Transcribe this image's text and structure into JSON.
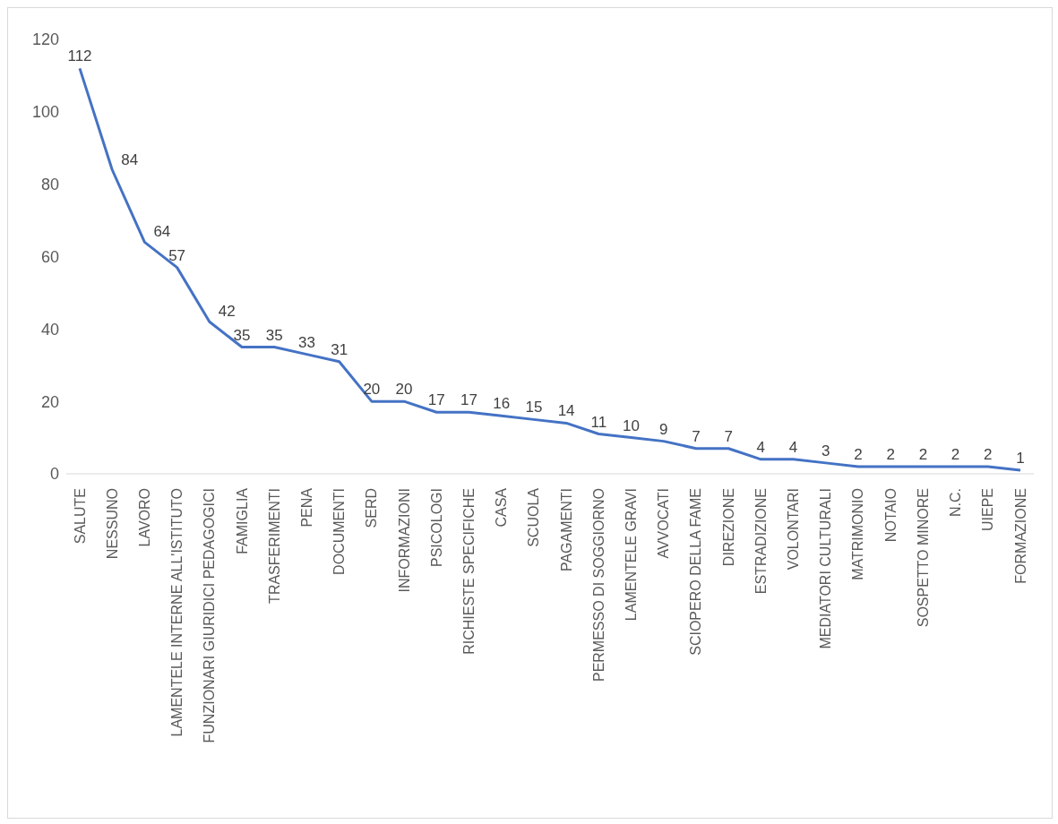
{
  "chart_data": {
    "type": "line",
    "categories": [
      "SALUTE",
      "NESSUNO",
      "LAVORO",
      "LAMENTELE INTERNE ALL'ISTITUTO",
      "FUNZIONARI GIURIDICI PEDAGOGICI",
      "FAMIGLIA",
      "TRASFERIMENTI",
      "PENA",
      "DOCUMENTI",
      "SERD",
      "INFORMAZIONI",
      "PSICOLOGI",
      "RICHIESTE SPECIFICHE",
      "CASA",
      "SCUOLA",
      "PAGAMENTI",
      "PERMESSO DI SOGGIORNO",
      "LAMENTELE GRAVI",
      "AVVOCATI",
      "SCIOPERO DELLA FAME",
      "DIREZIONE",
      "ESTRADIZIONE",
      "VOLONTARI",
      "MEDIATORI CULTURALI",
      "MATRIMONIO",
      "NOTAIO",
      "SOSPETTO MINORE",
      "N.C.",
      "UIEPE",
      "FORMAZIONE"
    ],
    "values": [
      112,
      84,
      64,
      57,
      42,
      35,
      35,
      33,
      31,
      20,
      20,
      17,
      17,
      16,
      15,
      14,
      11,
      10,
      9,
      7,
      7,
      4,
      4,
      3,
      2,
      2,
      2,
      2,
      2,
      1
    ],
    "color": "#4472c4",
    "ylim": [
      0,
      120
    ],
    "yticks": [
      0,
      20,
      40,
      60,
      80,
      100,
      120
    ],
    "grid": false,
    "legend": false,
    "marker": "none",
    "line_style": "solid",
    "data_labels": true
  }
}
